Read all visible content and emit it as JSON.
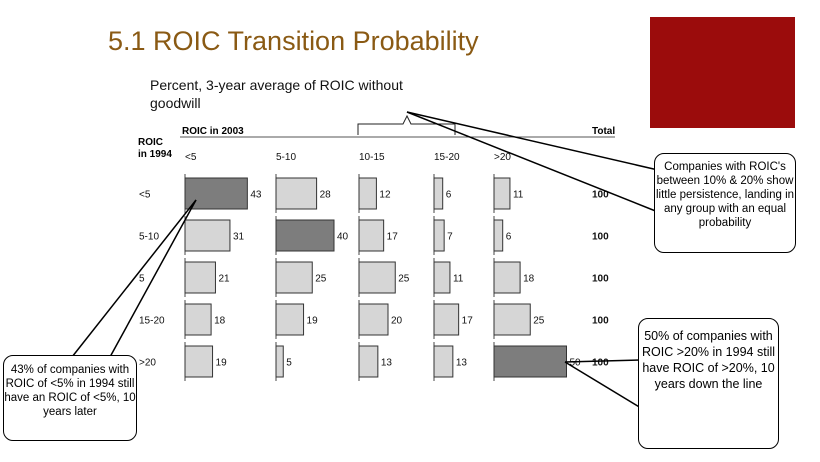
{
  "slide": {
    "title": "5.1 ROIC Transition Probability",
    "subtitle": "Percent, 3-year average of ROIC without goodwill"
  },
  "chart_data": {
    "type": "bar",
    "col_header": "ROIC in 2003",
    "row_header_line1": "ROIC",
    "row_header_line2": "in 1994",
    "total_header": "Total",
    "columns": [
      "<5",
      "5-10",
      "10-15",
      "15-20",
      ">20"
    ],
    "rows": [
      "<5",
      "5-10",
      "5",
      "15-20",
      ">20"
    ],
    "values": [
      [
        43,
        28,
        12,
        6,
        11
      ],
      [
        31,
        40,
        17,
        7,
        6
      ],
      [
        21,
        25,
        25,
        11,
        18
      ],
      [
        18,
        19,
        20,
        17,
        25
      ],
      [
        19,
        5,
        13,
        13,
        50
      ]
    ],
    "totals": [
      "100",
      "100",
      "100",
      "100",
      "100"
    ],
    "highlight": [
      [
        0,
        0
      ],
      [
        1,
        1
      ],
      [
        4,
        4
      ]
    ],
    "colors": {
      "bar": "#d6d6d6",
      "highlight": "#7d7d7d",
      "border": "#333333"
    }
  },
  "callouts": {
    "persistence": "Companies with ROIC's between 10% & 20% show little persistence, landing in any group with an equal probability",
    "low": "43% of companies with ROIC of <5% in 1994 still have an ROIC of <5%, 10 years later",
    "high": "50% of companies with ROIC >20% in 1994 still have ROIC of >20%, 10 years down the line"
  },
  "colors": {
    "title": "#8a5a14",
    "accent_box": "#9b0c0c"
  }
}
